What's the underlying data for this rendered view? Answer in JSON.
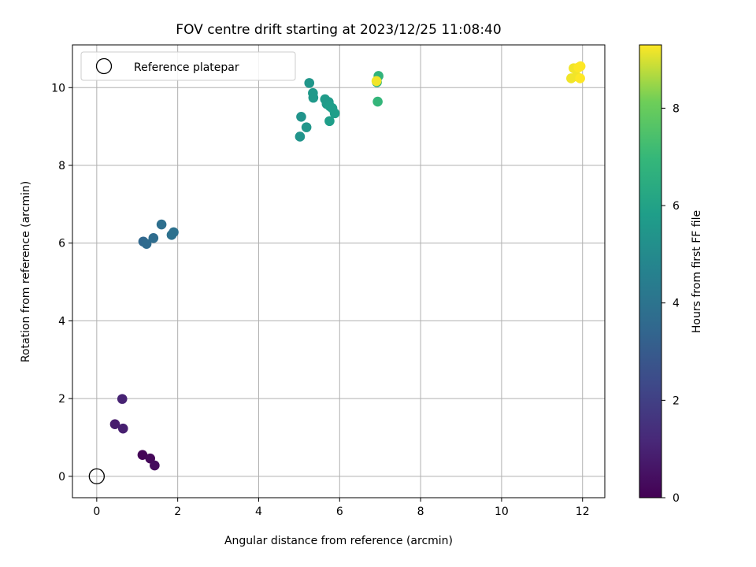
{
  "chart_data": {
    "type": "scatter",
    "title": "FOV centre drift starting at 2023/12/25 11:08:40",
    "xlabel": "Angular distance from reference (arcmin)",
    "ylabel": "Rotation from reference (arcmin)",
    "xlim": [
      -0.6,
      12.55
    ],
    "ylim": [
      -0.55,
      11.1
    ],
    "xticks": [
      0,
      2,
      4,
      6,
      8,
      10,
      12
    ],
    "yticks": [
      0,
      2,
      4,
      6,
      8,
      10
    ],
    "grid": true,
    "legend": {
      "placement": "top-left",
      "entries": [
        "Reference platepar"
      ]
    },
    "reference_point": {
      "x": 0,
      "y": 0,
      "label": "Reference platepar"
    },
    "colorbar": {
      "label": "Hours from first FF file",
      "range": [
        0,
        9.3
      ],
      "ticks": [
        0,
        2,
        4,
        6,
        8
      ],
      "colormap": "viridis"
    },
    "points": [
      {
        "x": 1.13,
        "y": 0.55,
        "hours": 0.1
      },
      {
        "x": 1.32,
        "y": 0.46,
        "hours": 0.2
      },
      {
        "x": 1.43,
        "y": 0.28,
        "hours": 0.3
      },
      {
        "x": 0.45,
        "y": 1.34,
        "hours": 0.8
      },
      {
        "x": 0.65,
        "y": 1.23,
        "hours": 0.9
      },
      {
        "x": 0.63,
        "y": 1.99,
        "hours": 1.0
      },
      {
        "x": 1.15,
        "y": 6.04,
        "hours": 3.5
      },
      {
        "x": 1.23,
        "y": 5.98,
        "hours": 3.6
      },
      {
        "x": 1.4,
        "y": 6.13,
        "hours": 3.7
      },
      {
        "x": 1.6,
        "y": 6.48,
        "hours": 3.8
      },
      {
        "x": 1.85,
        "y": 6.21,
        "hours": 3.9
      },
      {
        "x": 1.9,
        "y": 6.28,
        "hours": 3.9
      },
      {
        "x": 5.02,
        "y": 8.74,
        "hours": 5.4
      },
      {
        "x": 5.05,
        "y": 9.25,
        "hours": 5.4
      },
      {
        "x": 5.18,
        "y": 8.98,
        "hours": 5.5
      },
      {
        "x": 5.25,
        "y": 10.12,
        "hours": 5.5
      },
      {
        "x": 5.34,
        "y": 9.86,
        "hours": 5.6
      },
      {
        "x": 5.35,
        "y": 9.74,
        "hours": 5.6
      },
      {
        "x": 5.64,
        "y": 9.7,
        "hours": 5.7
      },
      {
        "x": 5.68,
        "y": 9.58,
        "hours": 5.7
      },
      {
        "x": 5.73,
        "y": 9.63,
        "hours": 5.7
      },
      {
        "x": 5.76,
        "y": 9.52,
        "hours": 5.8
      },
      {
        "x": 5.82,
        "y": 9.47,
        "hours": 5.8
      },
      {
        "x": 5.88,
        "y": 9.34,
        "hours": 5.8
      },
      {
        "x": 5.75,
        "y": 9.14,
        "hours": 5.8
      },
      {
        "x": 6.92,
        "y": 10.14,
        "hours": 6.8
      },
      {
        "x": 6.96,
        "y": 10.3,
        "hours": 6.8
      },
      {
        "x": 6.94,
        "y": 9.64,
        "hours": 6.9
      },
      {
        "x": 6.91,
        "y": 10.17,
        "hours": 9.2
      },
      {
        "x": 11.72,
        "y": 10.24,
        "hours": 9.2
      },
      {
        "x": 11.78,
        "y": 10.5,
        "hours": 9.2
      },
      {
        "x": 11.85,
        "y": 10.29,
        "hours": 9.2
      },
      {
        "x": 11.9,
        "y": 10.52,
        "hours": 9.3
      },
      {
        "x": 11.94,
        "y": 10.24,
        "hours": 9.3
      },
      {
        "x": 11.95,
        "y": 10.55,
        "hours": 9.3
      }
    ]
  }
}
